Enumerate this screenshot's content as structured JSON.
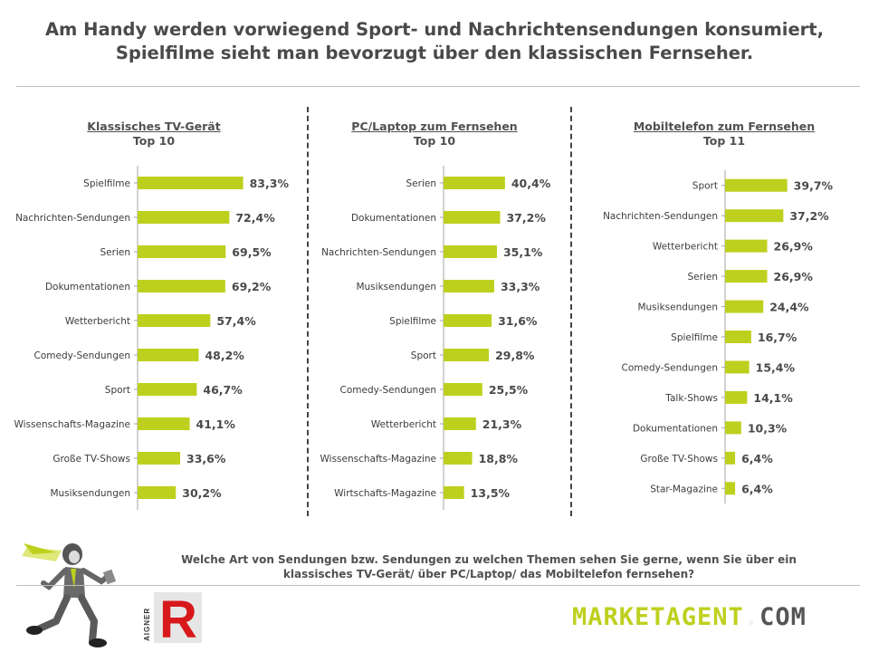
{
  "title_line1": "Am Handy werden vorwiegend Sport- und Nachrichtensendungen konsumiert,",
  "title_line2": "Spielfilme sieht man bevorzugt über den klassischen Fernseher.",
  "question_line1": "Welche Art von Sendungen bzw. Sendungen zu welchen Themen sehen Sie gerne, wenn Sie über ein",
  "question_line2": "klassisches TV-Gerät/ über PC/Laptop/ das Mobiltelefon fernsehen?",
  "logos": {
    "aigner_letter": "R",
    "aigner_text": "AIGNER",
    "brand_part1": "MARKETAGENT",
    "brand_part2": ".",
    "brand_part3": "COM"
  },
  "colors": {
    "bar": "#bed01e",
    "axis": "#a6a6a6",
    "text": "#4a4a4a",
    "brand_green": "#bed01e",
    "brand_gray": "#555555",
    "aigner_red": "#d7191c"
  },
  "chart_data": [
    {
      "type": "bar",
      "orientation": "horizontal",
      "title": "Klassisches TV-Gerät",
      "subtitle": "Top 10",
      "categories": [
        "Spielfilme",
        "Nachrichten-Sendungen",
        "Serien",
        "Dokumentationen",
        "Wetterbericht",
        "Comedy-Sendungen",
        "Sport",
        "Wissenschafts-Magazine",
        "Große TV-Shows",
        "Musiksendungen"
      ],
      "values": [
        83.3,
        72.4,
        69.5,
        69.2,
        57.4,
        48.2,
        46.7,
        41.1,
        33.6,
        30.2
      ],
      "labels": [
        "83,3%",
        "72,4%",
        "69,5%",
        "69,2%",
        "57,4%",
        "48,2%",
        "46,7%",
        "41,1%",
        "33,6%",
        "30,2%"
      ],
      "unit": "%",
      "xlim": [
        0,
        100
      ]
    },
    {
      "type": "bar",
      "orientation": "horizontal",
      "title": "PC/Laptop zum Fernsehen",
      "subtitle": "Top 10",
      "categories": [
        "Serien",
        "Dokumentationen",
        "Nachrichten-Sendungen",
        "Musiksendungen",
        "Spielfilme",
        "Sport",
        "Comedy-Sendungen",
        "Wetterbericht",
        "Wissenschafts-Magazine",
        "Wirtschafts-Magazine"
      ],
      "values": [
        40.4,
        37.2,
        35.1,
        33.3,
        31.6,
        29.8,
        25.5,
        21.3,
        18.8,
        13.5
      ],
      "labels": [
        "40,4%",
        "37,2%",
        "35,1%",
        "33,3%",
        "31,6%",
        "29,8%",
        "25,5%",
        "21,3%",
        "18,8%",
        "13,5%"
      ],
      "unit": "%",
      "xlim": [
        0,
        100
      ]
    },
    {
      "type": "bar",
      "orientation": "horizontal",
      "title": "Mobiltelefon zum Fernsehen",
      "subtitle": "Top 11",
      "categories": [
        "Sport",
        "Nachrichten-Sendungen",
        "Wetterbericht",
        "Serien",
        "Musiksendungen",
        "Spielfilme",
        "Comedy-Sendungen",
        "Talk-Shows",
        "Dokumentationen",
        "Große TV-Shows",
        "Star-Magazine"
      ],
      "values": [
        39.7,
        37.2,
        26.9,
        26.9,
        24.4,
        16.7,
        15.4,
        14.1,
        10.3,
        6.4,
        6.4
      ],
      "labels": [
        "39,7%",
        "37,2%",
        "26,9%",
        "26,9%",
        "24,4%",
        "16,7%",
        "15,4%",
        "14,1%",
        "10,3%",
        "6,4%",
        "6,4%"
      ],
      "unit": "%",
      "xlim": [
        0,
        100
      ]
    }
  ]
}
